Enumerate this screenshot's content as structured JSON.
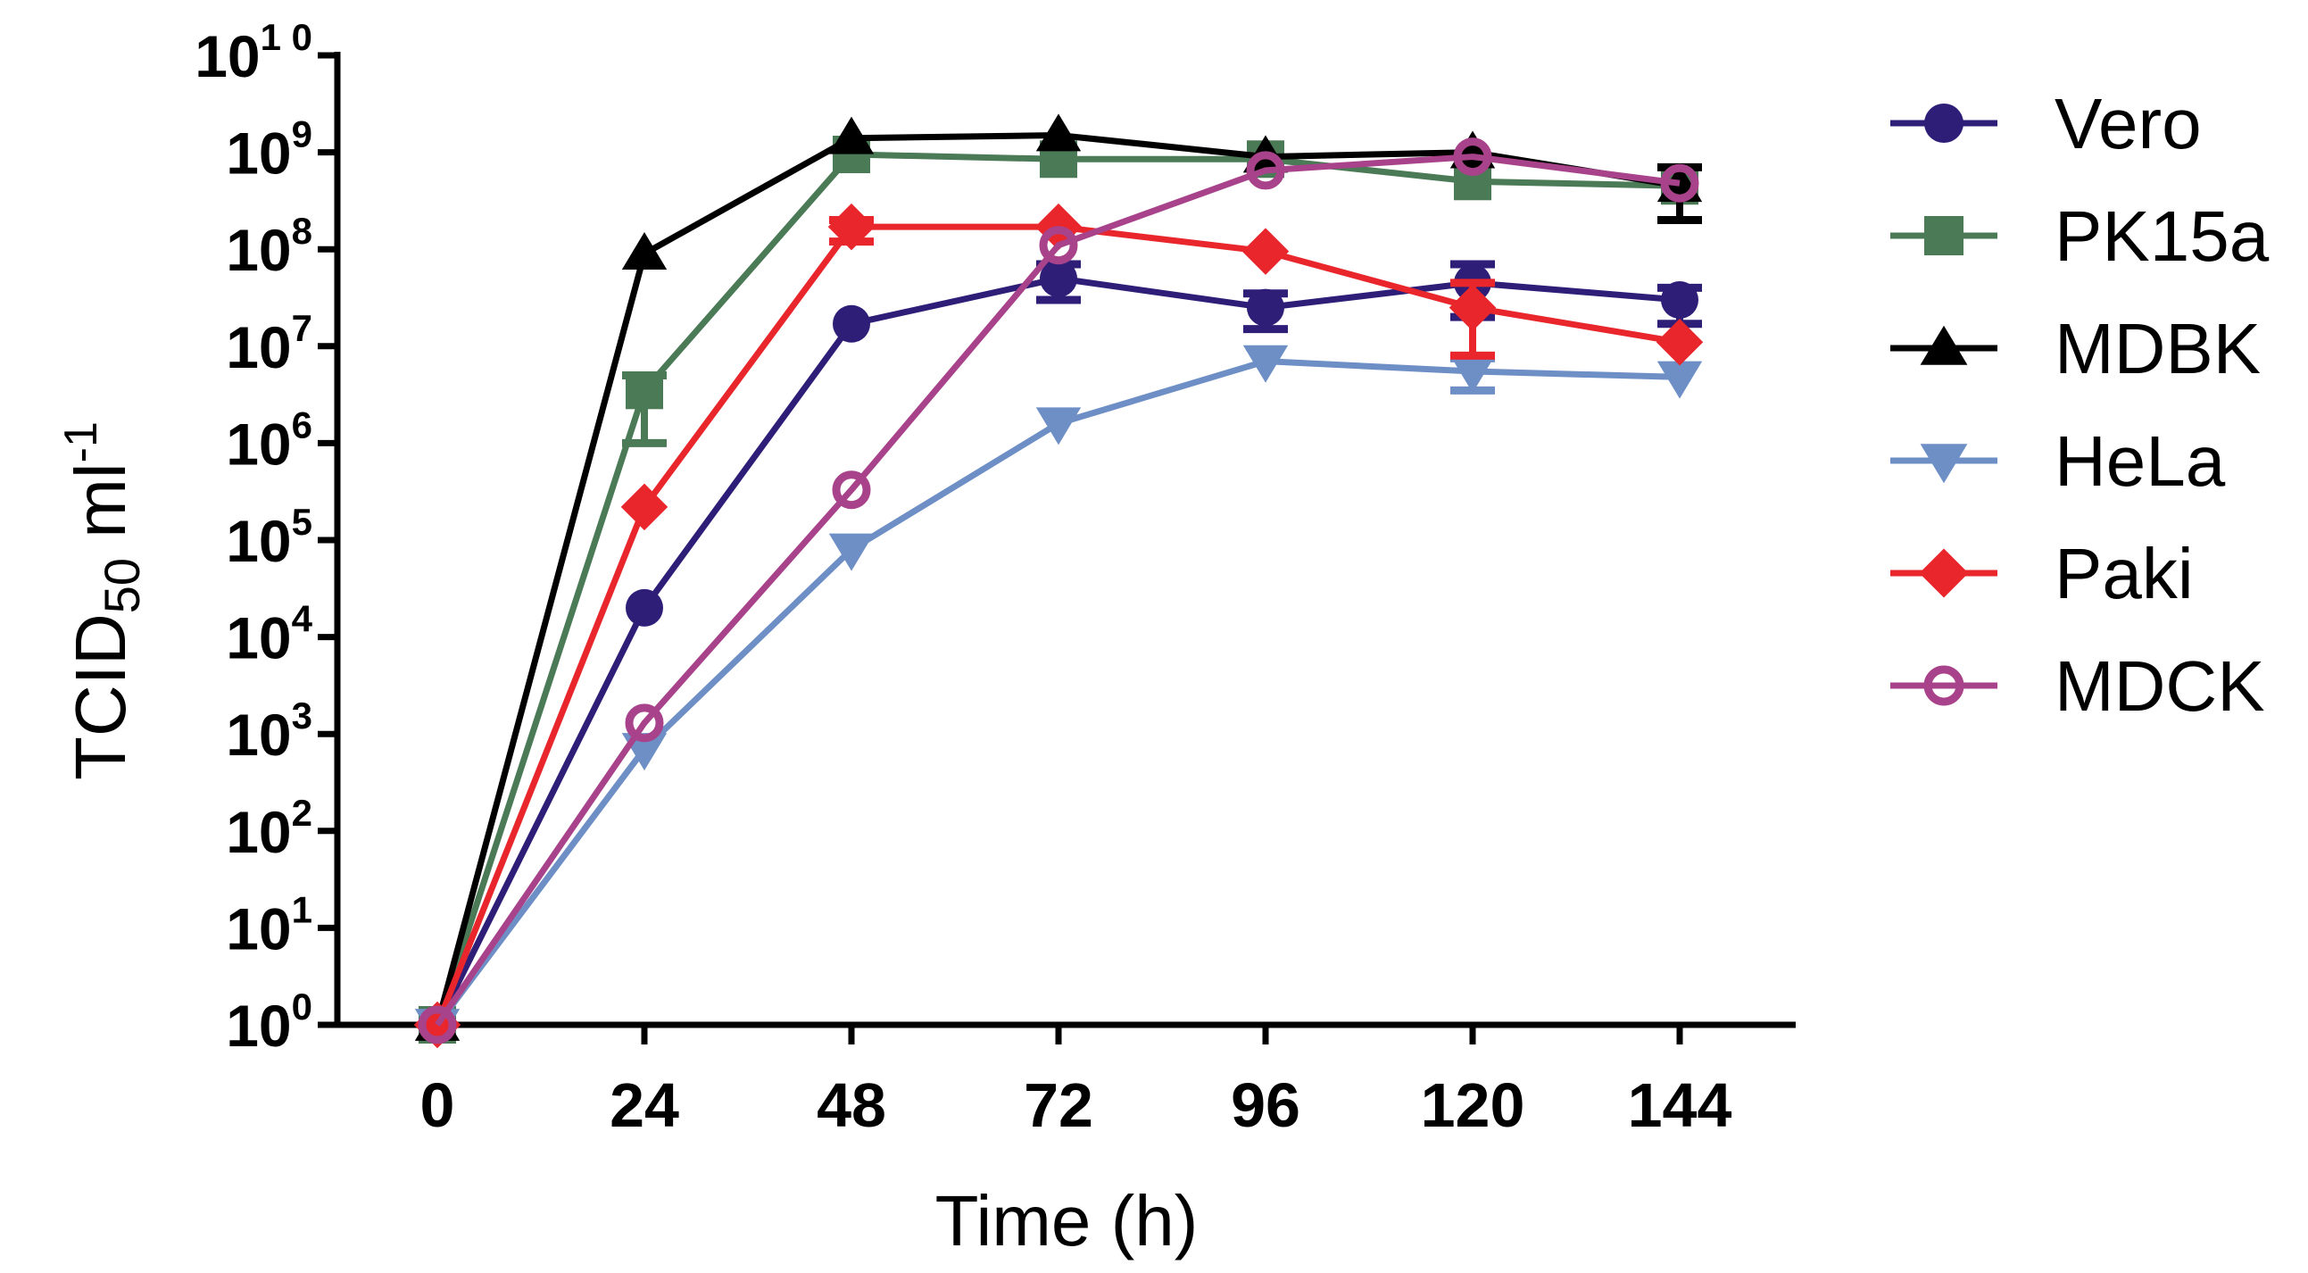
{
  "chart_data": {
    "type": "line",
    "title": "",
    "xlabel": "Time (h)",
    "ylabel": {
      "base": "TCID",
      "subscript": "50",
      "unit": " ml",
      "superscript": "-1"
    },
    "y_scale": "log10",
    "ylim_exp": [
      0,
      10
    ],
    "x": [
      0,
      24,
      48,
      72,
      96,
      120,
      144
    ],
    "x_tick_labels": [
      "0",
      "24",
      "48",
      "72",
      "96",
      "120",
      "144"
    ],
    "y_tick_labels": [
      {
        "base": "10",
        "exp": "0"
      },
      {
        "base": "10",
        "exp": "1"
      },
      {
        "base": "10",
        "exp": "2"
      },
      {
        "base": "10",
        "exp": "3"
      },
      {
        "base": "10",
        "exp": "4"
      },
      {
        "base": "10",
        "exp": "5"
      },
      {
        "base": "10",
        "exp": "6"
      },
      {
        "base": "10",
        "exp": "7"
      },
      {
        "base": "10",
        "exp": "8"
      },
      {
        "base": "10",
        "exp": "9"
      },
      {
        "base": "10",
        "exp": "1 0"
      }
    ],
    "legend_position": "right",
    "series": [
      {
        "name": "Vero",
        "color": "#2e1e78",
        "marker": "circle",
        "values": [
          1,
          20000.0,
          17000000.0,
          50000000.0,
          25000000.0,
          45000000.0,
          30000000.0
        ],
        "errors": [
          null,
          null,
          null,
          [
            30000000.0,
            70000000.0
          ],
          [
            15000000.0,
            35000000.0
          ],
          [
            20000000.0,
            70000000.0
          ],
          [
            17000000.0,
            40000000.0
          ]
        ]
      },
      {
        "name": "PK15a",
        "color": "#4a7a56",
        "marker": "square",
        "values": [
          1,
          3500000.0,
          950000000.0,
          850000000.0,
          850000000.0,
          500000000.0,
          450000000.0
        ],
        "errors": [
          null,
          [
            1000000.0,
            5000000.0
          ],
          null,
          null,
          null,
          null,
          null
        ]
      },
      {
        "name": "MDBK",
        "color": "#000000",
        "marker": "triangle-up",
        "values": [
          1,
          90000000.0,
          1400000000.0,
          1500000000.0,
          900000000.0,
          1000000000.0,
          450000000.0
        ],
        "errors": [
          null,
          null,
          null,
          null,
          null,
          null,
          [
            200000000.0,
            700000000.0
          ]
        ]
      },
      {
        "name": "HeLa",
        "color": "#6e8fc6",
        "marker": "triangle-down",
        "values": [
          1,
          700.0,
          80000.0,
          1600000.0,
          7000000.0,
          5500000.0,
          4800000.0
        ],
        "errors": [
          null,
          null,
          null,
          null,
          null,
          [
            3500000.0,
            7500000.0
          ],
          null
        ]
      },
      {
        "name": "Paki",
        "color": "#e8262b",
        "marker": "diamond",
        "values": [
          1,
          220000.0,
          170000000.0,
          170000000.0,
          95000000.0,
          25000000.0,
          11000000.0
        ],
        "errors": [
          null,
          null,
          [
            120000000.0,
            200000000.0
          ],
          null,
          null,
          [
            8000000.0,
            45000000.0
          ],
          null
        ]
      },
      {
        "name": "MDCK",
        "color": "#a8428a",
        "marker": "circle-open",
        "values": [
          1,
          1300.0,
          330000.0,
          110000000.0,
          650000000.0,
          900000000.0,
          480000000.0
        ],
        "errors": [
          null,
          null,
          null,
          null,
          null,
          null,
          null
        ]
      }
    ]
  }
}
